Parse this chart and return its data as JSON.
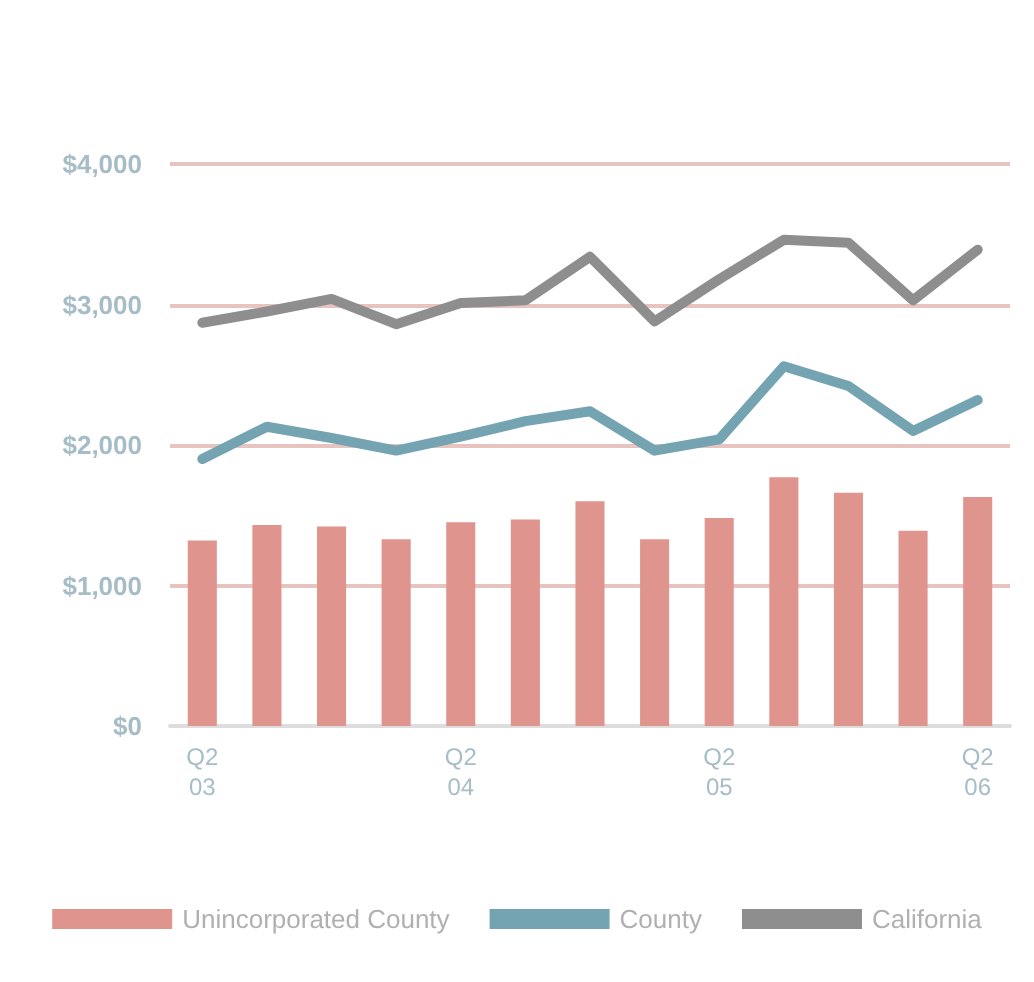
{
  "chart_data": {
    "type": "bar",
    "categories": [
      "Q2\n03",
      null,
      null,
      null,
      "Q2\n04",
      null,
      null,
      null,
      "Q2\n05",
      null,
      null,
      null,
      "Q2\n06"
    ],
    "series": [
      {
        "name": "Unincorporated County",
        "color": "#e0948e",
        "values": [
          1320,
          1430,
          1420,
          1330,
          1450,
          1470,
          1600,
          1330,
          1480,
          1770,
          1660,
          1390,
          1630
        ]
      },
      {
        "name": "County",
        "type": "line",
        "color": "#74a3b2",
        "values": [
          1900,
          2130,
          2050,
          1960,
          2060,
          2170,
          2240,
          1960,
          2040,
          2560,
          2420,
          2100,
          2320
        ]
      },
      {
        "name": "California",
        "type": "line",
        "color": "#8e8e8e",
        "values": [
          2870,
          2950,
          3040,
          2860,
          3010,
          3030,
          3340,
          2880,
          3180,
          3460,
          3440,
          3030,
          3390
        ]
      }
    ],
    "ylim": [
      0,
      4000
    ],
    "yticks": [
      {
        "value": 0,
        "label": "$0"
      },
      {
        "value": 1000,
        "label": "$1,000"
      },
      {
        "value": 2000,
        "label": "$2,000"
      },
      {
        "value": 3000,
        "label": "$3,000"
      },
      {
        "value": 4000,
        "label": "$4,000"
      }
    ],
    "grid": "y",
    "legend": "bottom",
    "marker": "none",
    "line_style": "solid"
  }
}
